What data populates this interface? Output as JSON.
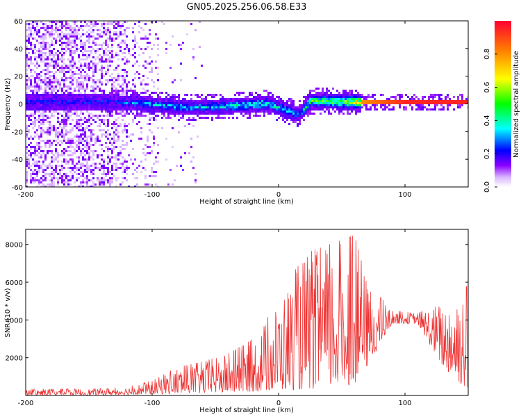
{
  "chart_data": [
    {
      "type": "heatmap",
      "title": "GN05.2025.256.06.58.E33",
      "xlabel": "Height of straight line (km)",
      "ylabel": "Frequency (Hz)",
      "xlim": [
        -200,
        150
      ],
      "ylim": [
        -60,
        60
      ],
      "xticks": [
        -200,
        -100,
        0,
        100
      ],
      "yticks": [
        -60,
        -40,
        -20,
        0,
        20,
        40,
        60
      ],
      "colorbar": {
        "label": "Normalized spectral amplitude",
        "ticks": [
          0.0,
          0.2,
          0.4,
          0.6,
          0.8
        ],
        "range": [
          0,
          1
        ],
        "stops": [
          {
            "v": 0.0,
            "color": "#ffffff"
          },
          {
            "v": 0.06,
            "color": "#d9b3ff"
          },
          {
            "v": 0.13,
            "color": "#8a00ff"
          },
          {
            "v": 0.22,
            "color": "#0000ff"
          },
          {
            "v": 0.35,
            "color": "#00ffff"
          },
          {
            "v": 0.5,
            "color": "#00ff00"
          },
          {
            "v": 0.65,
            "color": "#ffff00"
          },
          {
            "v": 0.82,
            "color": "#ff8000"
          },
          {
            "v": 1.0,
            "color": "#ff0033"
          }
        ]
      },
      "band_trace": [
        {
          "x": -130,
          "f": 2,
          "amp": 0.25
        },
        {
          "x": -100,
          "f": 0,
          "amp": 0.35
        },
        {
          "x": -70,
          "f": -2,
          "amp": 0.35
        },
        {
          "x": -40,
          "f": -1,
          "amp": 0.4
        },
        {
          "x": -10,
          "f": 1,
          "amp": 0.45
        },
        {
          "x": 15,
          "f": -7,
          "amp": 0.3
        },
        {
          "x": 25,
          "f": 3,
          "amp": 0.55
        },
        {
          "x": 50,
          "f": 2,
          "amp": 0.6
        },
        {
          "x": 65,
          "f": 2,
          "amp": 0.8
        },
        {
          "x": 100,
          "f": 2,
          "amp": 0.95
        },
        {
          "x": 150,
          "f": 2,
          "amp": 0.95
        }
      ]
    },
    {
      "type": "line",
      "xlabel": "Height of straight line (km)",
      "ylabel": "SNR (10 * v/v)",
      "xlim": [
        -200,
        150
      ],
      "ylim": [
        0,
        8800
      ],
      "xticks": [
        -200,
        -100,
        0,
        100
      ],
      "yticks": [
        2000,
        4000,
        6000,
        8000
      ],
      "color": "#ee3333",
      "envelope": [
        {
          "x": -200,
          "lo": 20,
          "hi": 350
        },
        {
          "x": -150,
          "lo": 20,
          "hi": 350
        },
        {
          "x": -120,
          "lo": 40,
          "hi": 450
        },
        {
          "x": -100,
          "lo": 60,
          "hi": 800
        },
        {
          "x": -80,
          "lo": 100,
          "hi": 1500
        },
        {
          "x": -60,
          "lo": 120,
          "hi": 1800
        },
        {
          "x": -40,
          "lo": 150,
          "hi": 2200
        },
        {
          "x": -20,
          "lo": 200,
          "hi": 3000
        },
        {
          "x": 0,
          "lo": 300,
          "hi": 5000
        },
        {
          "x": 20,
          "lo": 300,
          "hi": 7500
        },
        {
          "x": 40,
          "lo": 400,
          "hi": 8000
        },
        {
          "x": 60,
          "lo": 600,
          "hi": 8500
        },
        {
          "x": 70,
          "lo": 1500,
          "hi": 6000
        },
        {
          "x": 90,
          "lo": 3800,
          "hi": 4500
        },
        {
          "x": 110,
          "lo": 3800,
          "hi": 4400
        },
        {
          "x": 130,
          "lo": 1500,
          "hi": 5000
        },
        {
          "x": 150,
          "lo": 200,
          "hi": 6500
        }
      ]
    }
  ]
}
